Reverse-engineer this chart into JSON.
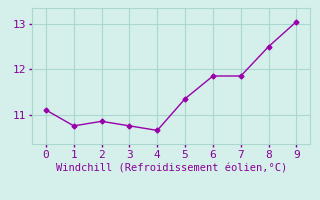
{
  "x": [
    0,
    1,
    2,
    3,
    4,
    5,
    6,
    7,
    8,
    9
  ],
  "y": [
    11.1,
    10.75,
    10.85,
    10.75,
    10.65,
    11.35,
    11.85,
    11.85,
    12.5,
    13.05
  ],
  "line_color": "#9900aa",
  "marker": "D",
  "marker_size": 2.5,
  "xlabel": "Windchill (Refroidissement éolien,°C)",
  "xlim": [
    -0.5,
    9.5
  ],
  "ylim": [
    10.35,
    13.35
  ],
  "yticks": [
    11,
    12,
    13
  ],
  "xticks": [
    0,
    1,
    2,
    3,
    4,
    5,
    6,
    7,
    8,
    9
  ],
  "background_color": "#d5f0eb",
  "grid_color": "#aad8d0",
  "tick_color": "#880099",
  "label_color": "#880099",
  "xlabel_fontsize": 7.5,
  "ytick_fontsize": 8,
  "xtick_fontsize": 8,
  "line_width": 1.0
}
